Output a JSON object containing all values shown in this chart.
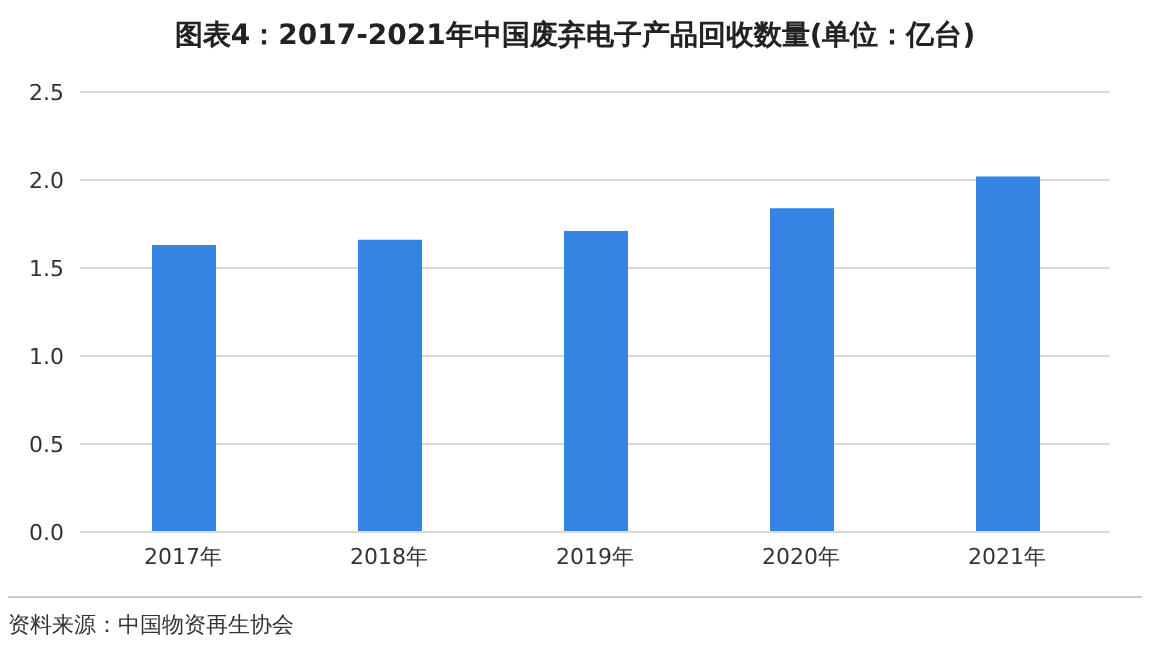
{
  "chart_data": {
    "type": "bar",
    "title": "图表4：2017-2021年中国废弃电子产品回收数量(单位：亿台)",
    "categories": [
      "2017年",
      "2018年",
      "2019年",
      "2020年",
      "2021年"
    ],
    "values": [
      1.63,
      1.66,
      1.71,
      1.84,
      2.02
    ],
    "color": "#3584e4",
    "ylim": [
      0,
      2.5
    ],
    "yticks": [
      {
        "value": 0,
        "label": "0.0"
      },
      {
        "value": 0.5,
        "label": "0.5"
      },
      {
        "value": 1,
        "label": "1.0"
      },
      {
        "value": 1.5,
        "label": "1.5"
      },
      {
        "value": 2,
        "label": "2.0"
      },
      {
        "value": 2.5,
        "label": "2.5"
      }
    ],
    "grid": "y",
    "annotations": [
      "资料来源：中国物资再生协会"
    ]
  }
}
